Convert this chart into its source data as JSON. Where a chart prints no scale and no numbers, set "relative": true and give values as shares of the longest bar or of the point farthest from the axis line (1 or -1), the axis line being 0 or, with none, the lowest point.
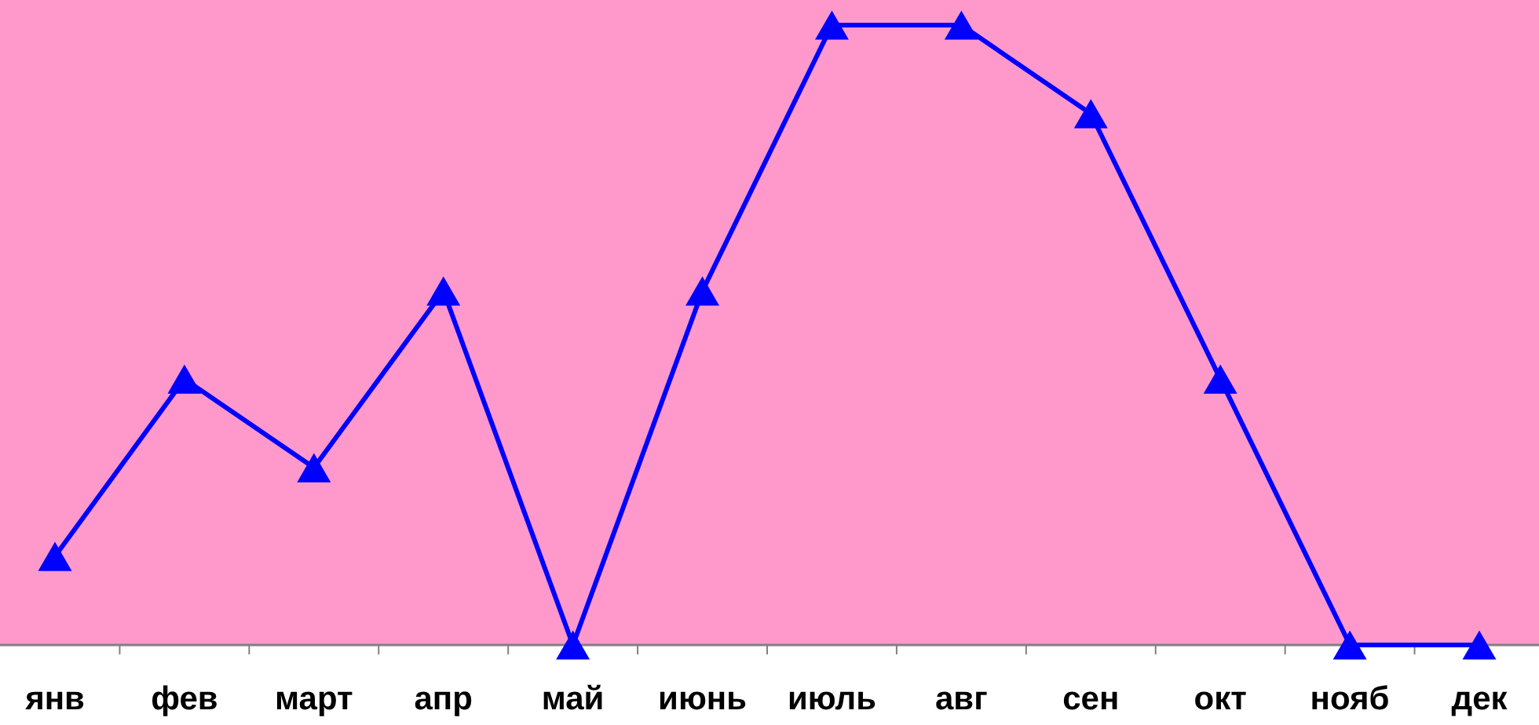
{
  "chart_data": {
    "type": "line",
    "relative": true,
    "categories": [
      "янв",
      "фев",
      "март",
      "апр",
      "май",
      "июнь",
      "июль",
      "авг",
      "сен",
      "окт",
      "нояб",
      "дек"
    ],
    "series": [
      {
        "color": "#0000ff",
        "values": [
          0.143,
          0.429,
          0.286,
          0.571,
          0,
          0.571,
          1,
          1,
          0.857,
          0.429,
          0,
          0
        ]
      }
    ],
    "marker": "triangle",
    "line_style": "solid",
    "grid": false
  }
}
